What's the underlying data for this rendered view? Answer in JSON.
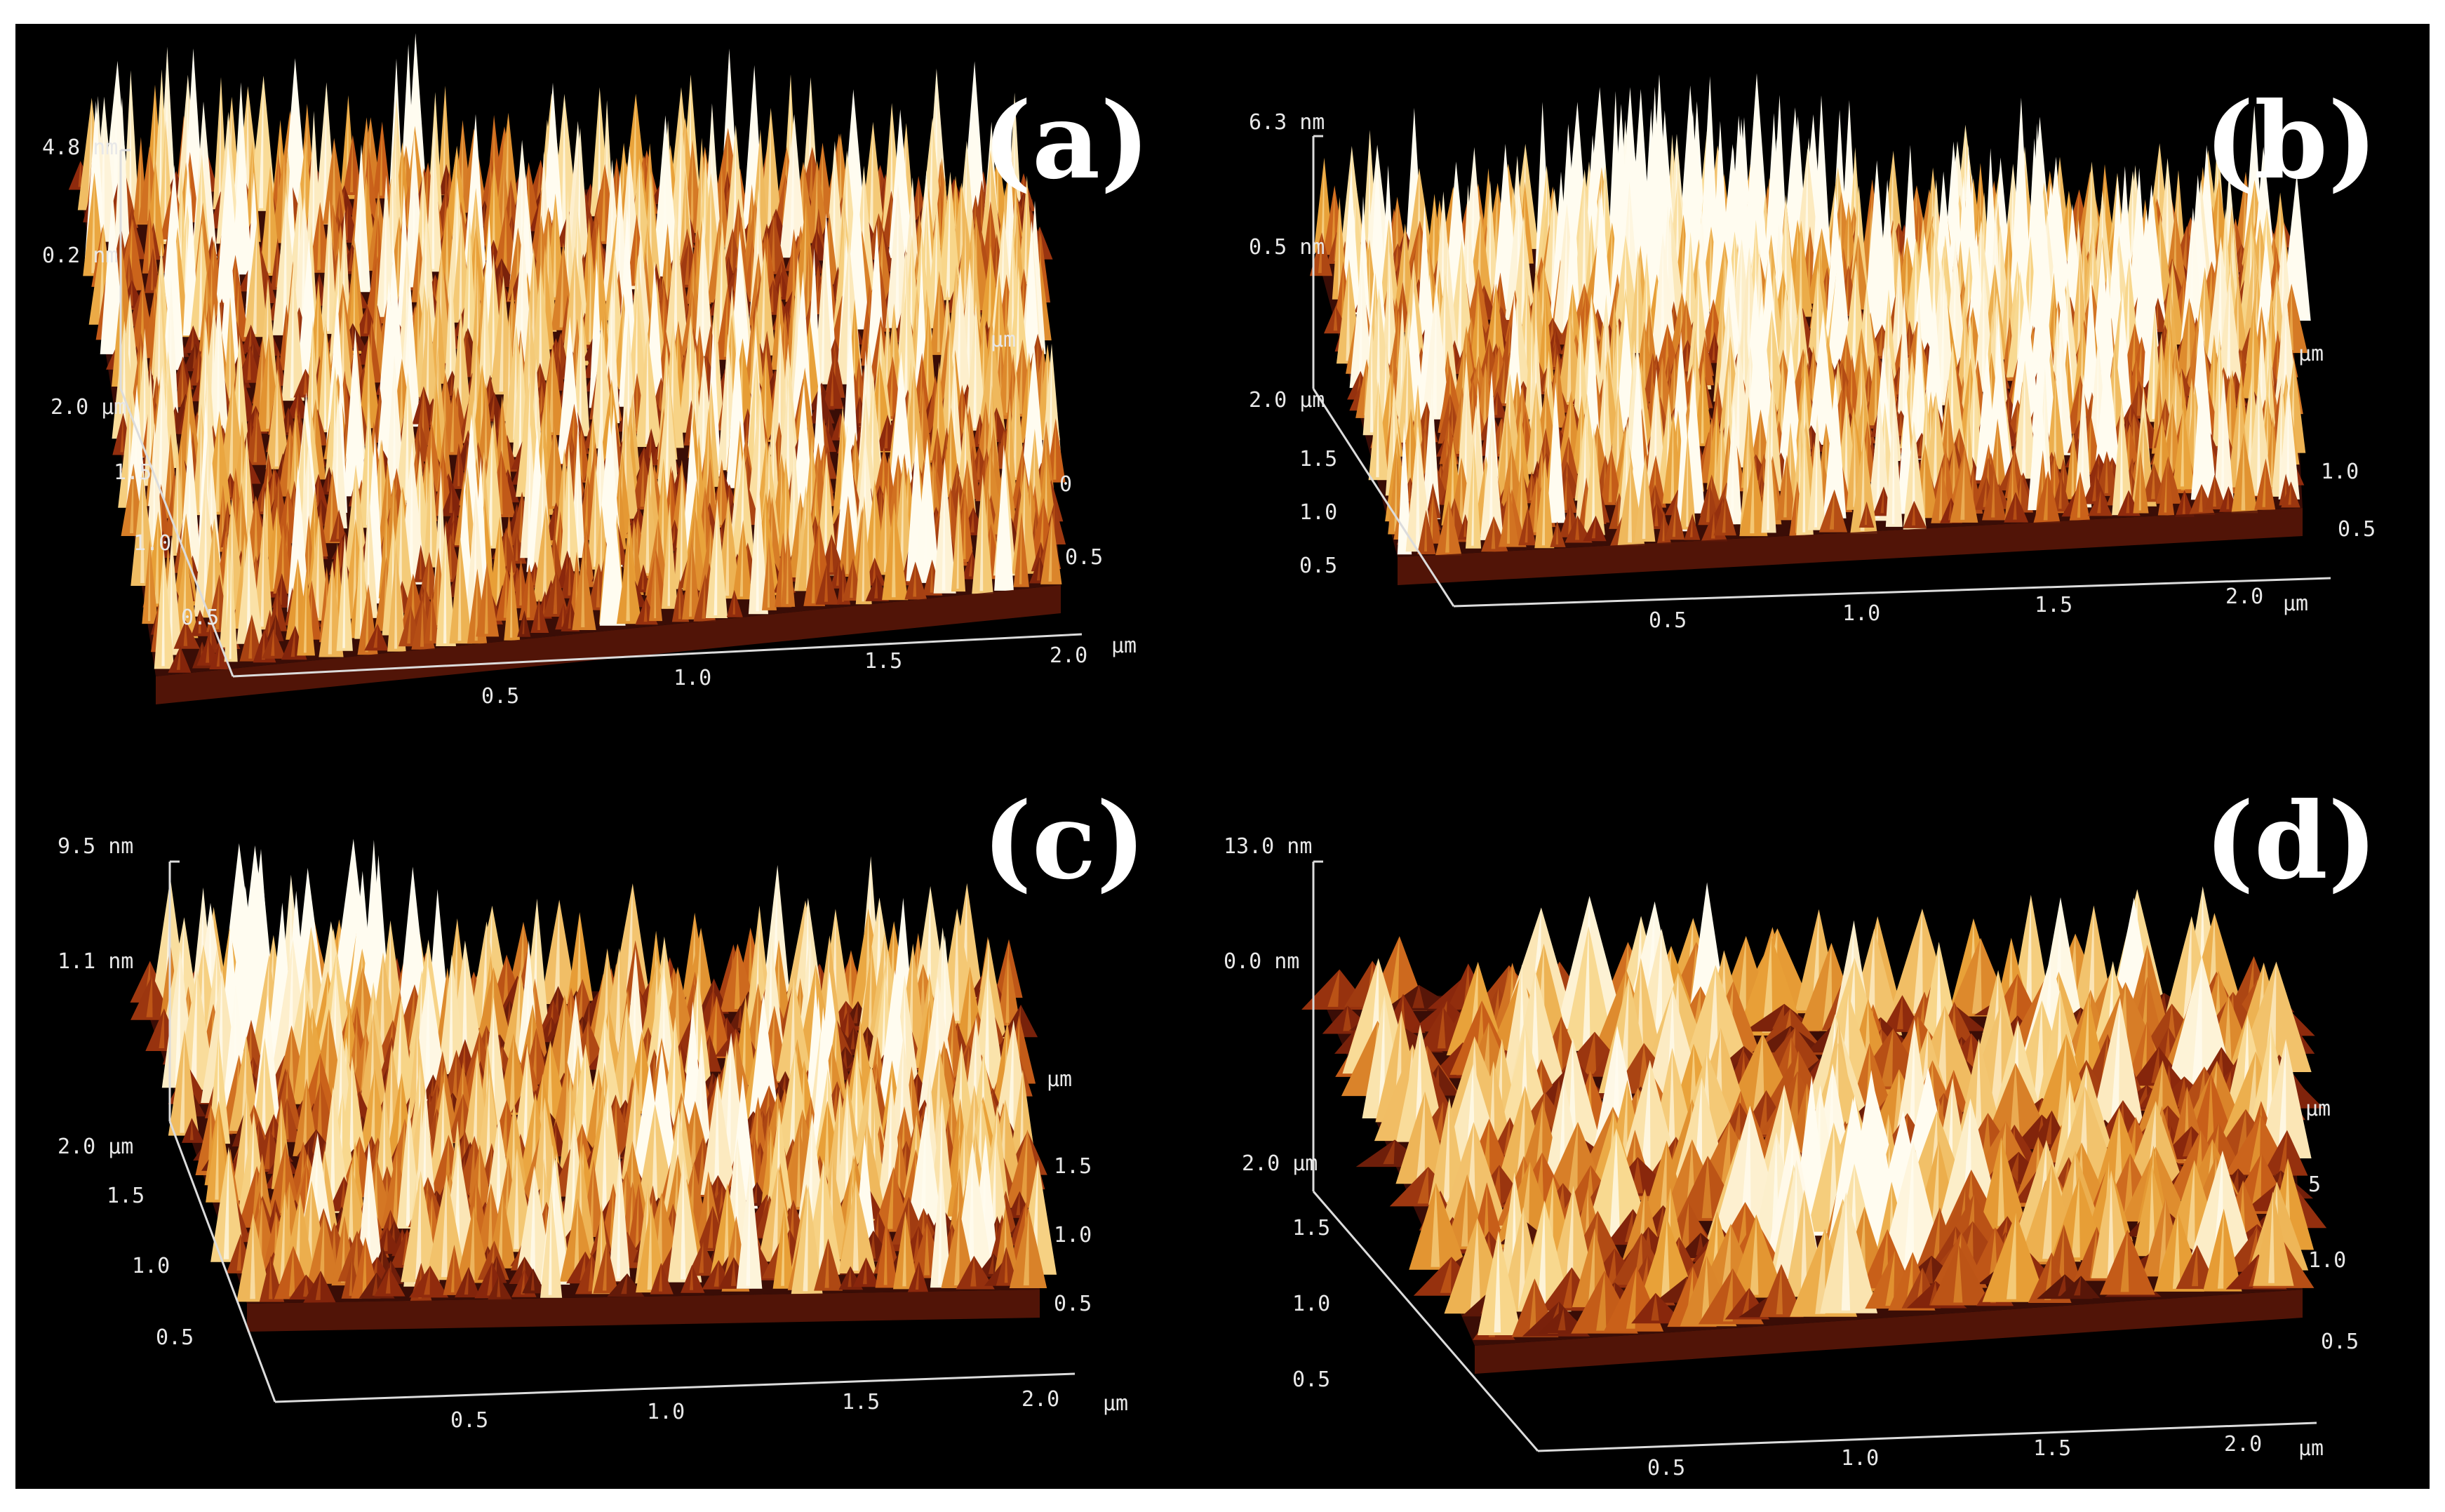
{
  "panels": [
    {
      "id": "a",
      "label": "(a)",
      "z_max": "4.8 nm",
      "z_mid": "0.2 nm",
      "y_unit": "2.0 µm",
      "y_ticks": [
        "1.5",
        "1.0",
        "0.5"
      ],
      "x_ticks": [
        "0.5",
        "1.0",
        "1.5",
        "2.0"
      ],
      "x_unit": "µm",
      "side_unit": "µm",
      "side_ticks": [
        "0",
        "0.5"
      ],
      "morphology": "dense fine spikes"
    },
    {
      "id": "b",
      "label": "(b)",
      "z_max": "6.3 nm",
      "z_mid": "0.5 nm",
      "y_unit": "2.0 µm",
      "y_ticks": [
        "1.5",
        "1.0",
        "0.5"
      ],
      "x_ticks": [
        "0.5",
        "1.0",
        "1.5",
        "2.0"
      ],
      "x_unit": "µm",
      "side_unit": "µm",
      "side_ticks": [
        "1.0",
        "0.5"
      ],
      "morphology": "spikes with large bright clusters"
    },
    {
      "id": "c",
      "label": "(c)",
      "z_max": "9.5 nm",
      "z_mid": "1.1 nm",
      "y_unit": "2.0 µm",
      "y_ticks": [
        "1.5",
        "1.0",
        "0.5"
      ],
      "x_ticks": [
        "0.5",
        "1.0",
        "1.5",
        "2.0"
      ],
      "x_unit": "µm",
      "side_unit": "µm",
      "side_ticks": [
        "1.5",
        "1.0",
        "0.5"
      ],
      "morphology": "coarser grains"
    },
    {
      "id": "d",
      "label": "(d)",
      "z_max": "13.0 nm",
      "z_mid": "0.0 nm",
      "y_unit": "2.0 µm",
      "y_ticks": [
        "1.5",
        "1.0",
        "0.5"
      ],
      "x_ticks": [
        "0.5",
        "1.0",
        "1.5",
        "2.0"
      ],
      "x_unit": "µm",
      "side_unit": "µm",
      "side_ticks": [
        "5",
        "1.0",
        "0.5"
      ],
      "morphology": "large grains and valleys"
    }
  ]
}
